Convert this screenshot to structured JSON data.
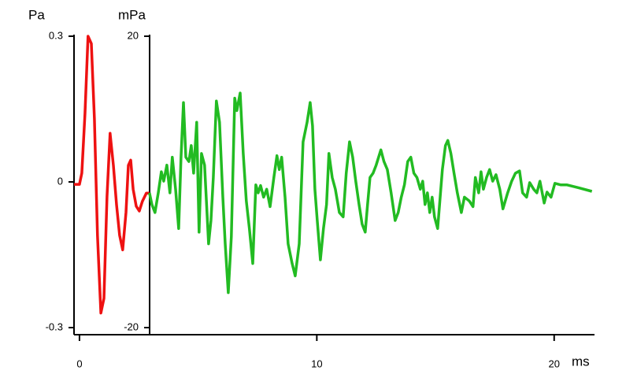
{
  "chart_data": {
    "type": "line",
    "y_label": "Pa",
    "y2_label": "mPa",
    "x_label": "ms",
    "xlim": [
      -0.23,
      21.7
    ],
    "xticks": [
      0,
      10,
      20
    ],
    "ylim": [
      -0.3,
      0.3
    ],
    "yticks": [
      0.3,
      0,
      -0.3
    ],
    "y2lim": [
      -20,
      20
    ],
    "y2ticks": [
      20,
      -20
    ],
    "series": [
      {
        "name": "Pa",
        "color": "#ee1111",
        "x": [
          -0.23,
          0,
          0.1,
          0.23,
          0.36,
          0.5,
          0.63,
          0.76,
          0.9,
          1.03,
          1.16,
          1.29,
          1.43,
          1.56,
          1.69,
          1.82,
          1.96,
          2.06,
          2.16,
          2.26,
          2.39,
          2.52,
          2.65,
          2.82,
          2.95
        ],
        "values": [
          -0.005,
          -0.005,
          0.018,
          0.14,
          0.3,
          0.285,
          0.13,
          -0.11,
          -0.27,
          -0.24,
          -0.03,
          0.1,
          0.034,
          -0.047,
          -0.11,
          -0.14,
          -0.063,
          0.034,
          0.045,
          -0.015,
          -0.05,
          -0.06,
          -0.04,
          -0.023,
          -0.023
        ]
      },
      {
        "name": "mPa",
        "color": "#22bb22",
        "axis": "y2",
        "x": [
          2.95,
          3.05,
          3.18,
          3.32,
          3.45,
          3.55,
          3.68,
          3.81,
          3.91,
          4.05,
          4.18,
          4.28,
          4.38,
          4.48,
          4.61,
          4.71,
          4.81,
          4.94,
          5.04,
          5.14,
          5.27,
          5.44,
          5.54,
          5.64,
          5.77,
          5.9,
          6.04,
          6.14,
          6.27,
          6.4,
          6.54,
          6.63,
          6.77,
          6.9,
          7.03,
          7.16,
          7.3,
          7.43,
          7.53,
          7.63,
          7.76,
          7.89,
          8.03,
          8.19,
          8.32,
          8.42,
          8.52,
          8.66,
          8.79,
          8.96,
          9.09,
          9.26,
          9.42,
          9.59,
          9.72,
          9.82,
          9.92,
          10.02,
          10.15,
          10.28,
          10.41,
          10.51,
          10.65,
          10.78,
          10.95,
          11.11,
          11.24,
          11.38,
          11.51,
          11.64,
          11.78,
          11.91,
          12.04,
          12.14,
          12.24,
          12.37,
          12.5,
          12.7,
          12.83,
          12.97,
          13.13,
          13.3,
          13.43,
          13.56,
          13.69,
          13.83,
          13.96,
          14.09,
          14.22,
          14.36,
          14.46,
          14.56,
          14.66,
          14.76,
          14.86,
          14.96,
          15.09,
          15.29,
          15.42,
          15.52,
          15.65,
          15.78,
          15.92,
          16.09,
          16.22,
          16.42,
          16.58,
          16.68,
          16.82,
          16.92,
          17.02,
          17.15,
          17.28,
          17.41,
          17.55,
          17.71,
          17.84,
          18.04,
          18.21,
          18.37,
          18.54,
          18.67,
          18.84,
          18.97,
          19.14,
          19.27,
          19.4,
          19.58,
          19.7,
          19.87,
          20.03,
          20.27,
          20.53,
          21.03,
          21.59
        ],
        "values": [
          -1.5,
          -3.1,
          -4.2,
          -1.5,
          1.4,
          0.1,
          2.3,
          -1.5,
          3.4,
          -1,
          -6.4,
          3.4,
          10.9,
          3.4,
          2.8,
          5,
          1.2,
          8.2,
          -6.9,
          3.9,
          2.3,
          -8.5,
          -5.3,
          0.6,
          11.1,
          8.2,
          -2.1,
          -8.5,
          -15.2,
          -7.5,
          11.5,
          9.8,
          12.2,
          3.9,
          -2.6,
          -6.4,
          -11.2,
          -0.4,
          -1.5,
          -0.5,
          -2.1,
          -1,
          -3.4,
          0.6,
          3.6,
          1.7,
          3.4,
          -2.1,
          -8.5,
          -11.2,
          -12.9,
          -8.5,
          5.5,
          8.2,
          10.9,
          7.7,
          -1,
          -5.3,
          -10.7,
          -6.4,
          -3.1,
          3.9,
          0.6,
          -1,
          -4.2,
          -4.8,
          1.2,
          5.5,
          3.4,
          0.1,
          -3.1,
          -5.8,
          -6.9,
          -3.1,
          0.6,
          1.2,
          2.3,
          4.4,
          2.8,
          1.7,
          -1.5,
          -5.3,
          -4.2,
          -2.1,
          -0.4,
          2.8,
          3.4,
          1.2,
          0.6,
          -1,
          0.1,
          -3.1,
          -1.5,
          -4.2,
          -2.1,
          -4.8,
          -6.4,
          1.7,
          5,
          5.7,
          3.9,
          1.2,
          -1.5,
          -4.2,
          -2.1,
          -2.6,
          -3.4,
          0.6,
          -1.5,
          1.4,
          -1,
          0.6,
          1.7,
          0.1,
          1,
          -1,
          -3.7,
          -1.5,
          0.1,
          1.2,
          1.5,
          -1.5,
          -2.1,
          -0.1,
          -1,
          -1.5,
          0.1,
          -2.9,
          -1.4,
          -2.1,
          -0.2,
          -0.4,
          -0.4,
          -0.8,
          -1.3
        ]
      }
    ]
  }
}
